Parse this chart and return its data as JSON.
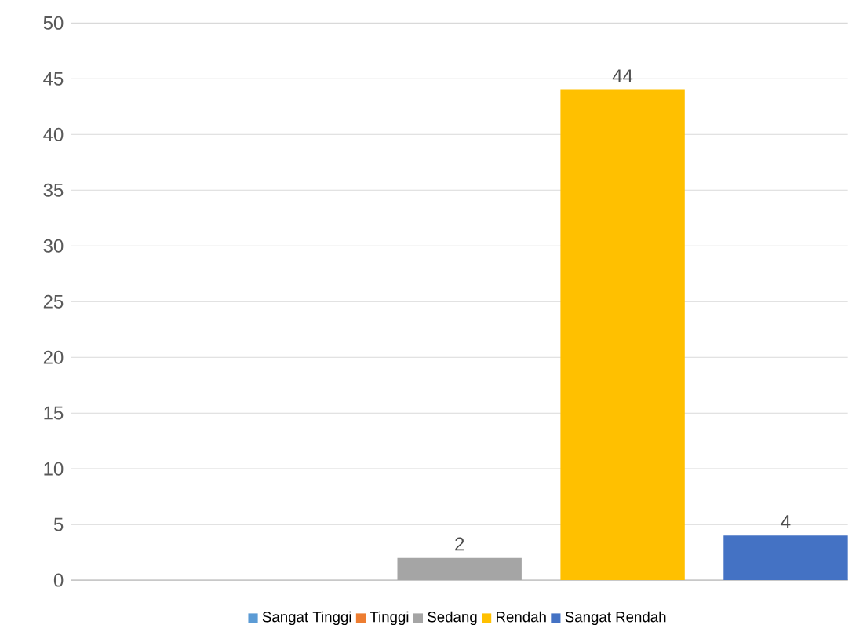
{
  "chart_data": {
    "type": "bar",
    "categories": [
      null
    ],
    "series": [
      {
        "name": "Sangat Tinggi",
        "color": "#5b9bd5",
        "values": [
          0
        ],
        "value_labels": [
          null
        ]
      },
      {
        "name": "Tinggi",
        "color": "#ed7d31",
        "values": [
          0
        ],
        "value_labels": [
          null
        ]
      },
      {
        "name": "Sedang",
        "color": "#a5a5a5",
        "values": [
          2
        ],
        "value_labels": [
          "2"
        ]
      },
      {
        "name": "Rendah",
        "color": "#ffc000",
        "values": [
          44
        ],
        "value_labels": [
          "44"
        ]
      },
      {
        "name": "Sangat Rendah",
        "color": "#4472c4",
        "values": [
          4
        ],
        "value_labels": [
          "4"
        ]
      }
    ],
    "ylim": [
      0,
      50
    ],
    "yticks": [
      0,
      5,
      10,
      15,
      20,
      25,
      30,
      35,
      40,
      45,
      50
    ],
    "grid": "y",
    "legend": "bottom"
  }
}
